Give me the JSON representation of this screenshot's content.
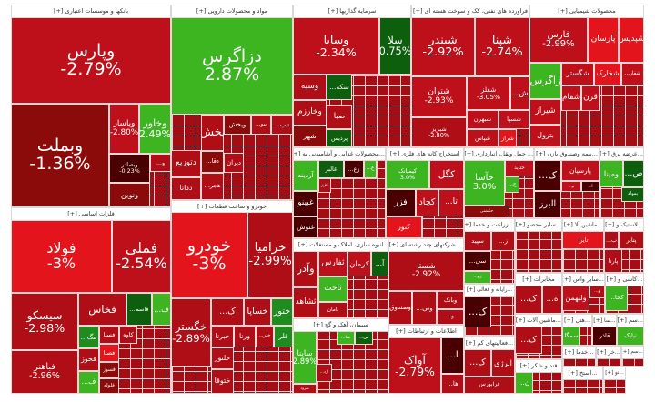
{
  "colors": {
    "strong_red": "#e4141c",
    "red": "#be101a",
    "dark_red": "#8b0a0a",
    "darkest_red": "#4a0000",
    "green": "#3cb521",
    "mid_green": "#1e8c1e",
    "dark_green": "#0d5f0d"
  },
  "sectors": [
    {
      "title": "بانکها و موسسات اعتباری [+]",
      "tiles": [
        {
          "symbol": "وپارس",
          "change": "-2.79%",
          "color": "#be101a"
        },
        {
          "symbol": "وبملت",
          "change": "-1.36%",
          "color": "#8b0a0a"
        },
        {
          "symbol": "وپاسار",
          "change": "-2.80%",
          "color": "#be101a"
        },
        {
          "symbol": "وخاور",
          "change": "2.49%",
          "color": "#3cb521"
        },
        {
          "symbol": "وبصادر",
          "change": "-0.23%",
          "color": "#4a0000"
        },
        {
          "symbol": "...و",
          "change": "",
          "color": "#b00e16"
        },
        {
          "symbol": "ونوین",
          "change": "",
          "color": "#8b0a0a"
        }
      ]
    },
    {
      "title": "مواد و محصولات دارویی [+]",
      "tiles": [
        {
          "symbol": "دزاگرس",
          "change": "2.87%",
          "color": "#3cb521"
        },
        {
          "symbol": "پخش",
          "change": "",
          "color": "#b00e16"
        },
        {
          "symbol": "ویخش",
          "change": "",
          "color": "#8b0a0a"
        },
        {
          "symbol": "...بیو",
          "change": "",
          "color": "#b00e16"
        },
        {
          "symbol": "...تیپ",
          "change": "",
          "color": "#b00e16"
        },
        {
          "symbol": "دتوزیع",
          "change": "",
          "color": "#b00e16"
        },
        {
          "symbol": "...دقا",
          "change": "",
          "color": "#8b0a0a"
        },
        {
          "symbol": "دیران",
          "change": "",
          "color": "#b00e16"
        },
        {
          "symbol": "ددانا",
          "change": "",
          "color": "#b00e16"
        },
        {
          "symbol": "...هجر",
          "change": "",
          "color": "#b00e16"
        }
      ]
    },
    {
      "title": "سرمایه گذاریها [+]",
      "tiles": [
        {
          "symbol": "وسایا",
          "change": "-2.34%",
          "color": "#be101a"
        },
        {
          "symbol": "سلا",
          "change": "0.75%",
          "color": "#0d5f0d"
        },
        {
          "symbol": "وسبه",
          "change": "",
          "color": "#b00e16"
        },
        {
          "symbol": "وخارزم",
          "change": "",
          "color": "#b00e16"
        },
        {
          "symbol": "شهر",
          "change": "",
          "color": "#8b0a0a"
        },
        {
          "symbol": "...سکه",
          "change": "",
          "color": "#0d5f0d"
        },
        {
          "symbol": "صبا",
          "change": "",
          "color": "#b00e16"
        },
        {
          "symbol": "پردیس",
          "change": "",
          "color": "#0d5f0d"
        }
      ]
    },
    {
      "title": "فراورده های نفتی، کک و سوخت هسته ای [+]",
      "tiles": [
        {
          "symbol": "شبندر",
          "change": "-2.92%",
          "color": "#be101a"
        },
        {
          "symbol": "شپنا",
          "change": "-2.74%",
          "color": "#be101a"
        },
        {
          "symbol": "شتران",
          "change": "-2.93%",
          "color": "#be101a"
        },
        {
          "symbol": "شفلز",
          "change": "-3.05%",
          "color": "#be101a"
        },
        {
          "symbol": "...ش",
          "change": "",
          "color": "#be101a"
        },
        {
          "symbol": "شبهرن",
          "change": "",
          "color": "#be101a"
        },
        {
          "symbol": "شسپا",
          "change": "",
          "color": "#be101a"
        },
        {
          "symbol": "شپاس",
          "change": "",
          "color": "#be101a"
        },
        {
          "symbol": "شراز",
          "change": "",
          "color": "#e4141c"
        },
        {
          "symbol": "شبریز",
          "change": "-2.80%",
          "color": "#b00e16"
        }
      ]
    },
    {
      "title": "محصولات شیمیایی [+]",
      "tiles": [
        {
          "symbol": "فارس",
          "change": "-2.99%",
          "color": "#be101a"
        },
        {
          "symbol": "پارسان",
          "change": "",
          "color": "#e4141c"
        },
        {
          "symbol": "شپدیس",
          "change": "",
          "color": "#e4141c"
        },
        {
          "symbol": "زاگرس",
          "change": "",
          "color": "#3cb521"
        },
        {
          "symbol": "شگستر",
          "change": "",
          "color": "#be101a"
        },
        {
          "symbol": "شخارک",
          "change": "",
          "color": "#e4141c"
        },
        {
          "symbol": "...شفار",
          "change": "",
          "color": "#be101a"
        },
        {
          "symbol": "شیراز",
          "change": "",
          "color": "#be101a"
        },
        {
          "symbol": "بترول",
          "change": "",
          "color": "#be101a"
        },
        {
          "symbol": "شفام",
          "change": "",
          "color": "#be101a"
        },
        {
          "symbol": "قرن",
          "change": "",
          "color": "#be101a"
        }
      ]
    },
    {
      "title": "...محصولات غذایی و آشامیدنی به [+]",
      "tiles": [
        {
          "symbol": "آردینه",
          "change": "",
          "color": "#3cb521"
        },
        {
          "symbol": "غالبر",
          "change": "",
          "color": "#0d5f0d"
        },
        {
          "symbol": "...زع",
          "change": "",
          "color": "#4a0000"
        },
        {
          "symbol": "...غ",
          "change": "",
          "color": "#3cb521"
        },
        {
          "symbol": "غبینو",
          "change": "",
          "color": "#4a0000"
        },
        {
          "symbol": "غنوش",
          "change": "",
          "color": "#4a0000"
        },
        {
          "symbol": "غزر",
          "change": "",
          "color": "#b00e16"
        }
      ]
    },
    {
      "title": "استخراج کانه های فلزی [+]",
      "tiles": [
        {
          "symbol": "کیمیاتک",
          "change": "3.0%",
          "color": "#3cb521"
        },
        {
          "symbol": "کگل",
          "change": "",
          "color": "#be101a"
        },
        {
          "symbol": "فزر",
          "change": "",
          "color": "#4a0000"
        },
        {
          "symbol": "کچاد",
          "change": "",
          "color": "#be101a"
        },
        {
          "symbol": "...تا",
          "change": "",
          "color": "#be101a"
        },
        {
          "symbol": "کنور",
          "change": "",
          "color": "#e4141c"
        }
      ]
    },
    {
      "title": "... حمل ونقل، انبارداری [+]",
      "tiles": [
        {
          "symbol": "حآسا",
          "change": "3.0%",
          "color": "#3cb521"
        },
        {
          "symbol": "حتاید",
          "change": "",
          "color": "#be101a"
        },
        {
          "symbol": "...ح",
          "change": "",
          "color": "#3cb521"
        },
        {
          "symbol": "حکشتی",
          "change": "",
          "color": "#8b0a0a"
        }
      ]
    },
    {
      "title": "...بیمه وصندوق بازن [+]",
      "tiles": [
        {
          "symbol": "...ک",
          "change": "",
          "color": "#4a0000"
        },
        {
          "symbol": "پارسیان",
          "change": "",
          "color": "#be101a"
        },
        {
          "symbol": "...م",
          "change": "",
          "color": "#be101a"
        },
        {
          "symbol": "...آ",
          "change": "",
          "color": "#4a0000"
        },
        {
          "symbol": "البرز",
          "change": "",
          "color": "#4a0000"
        }
      ]
    },
    {
      "title": "...عرضه برق [+]",
      "tiles": [
        {
          "symbol": "ومپنا",
          "change": "",
          "color": "#3cb521"
        },
        {
          "symbol": "...ص",
          "change": "",
          "color": "#0d5f0d"
        },
        {
          "symbol": "بمولد",
          "change": "",
          "color": "#0d5f0d"
        }
      ]
    },
    {
      "title": "فلزات اساسی [+]",
      "tiles": [
        {
          "symbol": "فولاد",
          "change": "-3%",
          "color": "#e4141c"
        },
        {
          "symbol": "فملی",
          "change": "-2.54%",
          "color": "#be101a"
        },
        {
          "symbol": "سیسکو",
          "change": "-2.98%",
          "color": "#b00e16"
        },
        {
          "symbol": "فباهنر",
          "change": "-2.96%",
          "color": "#b00e16"
        },
        {
          "symbol": "فخاس",
          "change": "",
          "color": "#b00e16"
        },
        {
          "symbol": "...فاسم",
          "change": "",
          "color": "#0d5f0d"
        },
        {
          "symbol": "...ف",
          "change": "",
          "color": "#3cb521"
        },
        {
          "symbol": "...مگ",
          "change": "",
          "color": "#1e8c1e"
        },
        {
          "symbol": "فسپا",
          "change": "",
          "color": "#b00e16"
        },
        {
          "symbol": "کاوه",
          "change": "",
          "color": "#b00e16"
        },
        {
          "symbol": "فصبا",
          "change": "",
          "color": "#e4141c"
        },
        {
          "symbol": "فخوز",
          "change": "",
          "color": "#b00e16"
        },
        {
          "symbol": "فسوز",
          "change": "",
          "color": "#8b0a0a"
        },
        {
          "symbol": "فلوله",
          "change": "",
          "color": "#8b0a0a"
        },
        {
          "symbol": "...ف",
          "change": "",
          "color": "#3cb521"
        }
      ]
    },
    {
      "title": "خودرو و ساخت قطعات [+]",
      "tiles": [
        {
          "symbol": "خودرو",
          "change": "-3%",
          "color": "#e4141c"
        },
        {
          "symbol": "خزامیا",
          "change": "-2.99%",
          "color": "#b00e16"
        },
        {
          "symbol": "خگستر",
          "change": "-2.89%",
          "color": "#b00e16"
        },
        {
          "symbol": "...ک",
          "change": "",
          "color": "#b00e16"
        },
        {
          "symbol": "خساپا",
          "change": "",
          "color": "#b00e16"
        },
        {
          "symbol": "ختور",
          "change": "",
          "color": "#1e8c1e"
        },
        {
          "symbol": "خبرنا",
          "change": "",
          "color": "#b00e16"
        },
        {
          "symbol": "ورنا",
          "change": "",
          "color": "#b00e16"
        },
        {
          "symbol": "...ختر",
          "change": "",
          "color": "#b00e16"
        },
        {
          "symbol": "قلر",
          "change": "",
          "color": "#1e8c1e"
        },
        {
          "symbol": "خلنور",
          "change": "",
          "color": "#b00e16"
        },
        {
          "symbol": "ختوقا",
          "change": "",
          "color": "#b00e16"
        }
      ]
    },
    {
      "title": "انبوه سازی، املاک و مستغلات [+]",
      "tiles": [
        {
          "symbol": "وآذر",
          "change": "",
          "color": "#b00e16"
        },
        {
          "symbol": "ثفارس",
          "change": "",
          "color": "#be101a"
        },
        {
          "symbol": "کرمان",
          "change": "",
          "color": "#be101a"
        },
        {
          "symbol": "...آ",
          "change": "",
          "color": "#0d5f0d"
        },
        {
          "symbol": "ثاخت",
          "change": "",
          "color": "#3cb521"
        },
        {
          "symbol": "ثشاهد",
          "change": "",
          "color": "#b00e16"
        },
        {
          "symbol": "ثامان",
          "change": "",
          "color": "#b00e16"
        }
      ]
    },
    {
      "title": "... شرکتهای چند رشته ای [+]",
      "tiles": [
        {
          "symbol": "شستا",
          "change": "-2.92%",
          "color": "#b00e16"
        },
        {
          "symbol": "وصندوق",
          "change": "",
          "color": "#b00e16"
        },
        {
          "symbol": "...ونی",
          "change": "",
          "color": "#b00e16"
        },
        {
          "symbol": "وبانک",
          "change": "",
          "color": "#b00e16"
        },
        {
          "symbol": "...و",
          "change": "",
          "color": "#b00e16"
        }
      ]
    },
    {
      "title": "سیمان، آهک و گچ [+]",
      "tiles": [
        {
          "symbol": "ساینا",
          "change": "2.89%",
          "color": "#3cb521"
        },
        {
          "symbol": "...سا",
          "change": "",
          "color": "#3cb521"
        },
        {
          "symbol": "...س",
          "change": "",
          "color": "#0d5f0d"
        },
        {
          "symbol": "...ارد",
          "change": "",
          "color": "#b00e16"
        },
        {
          "symbol": "سرود",
          "change": "",
          "color": "#b00e16"
        }
      ]
    },
    {
      "title": "اطلاعات و ارتباطات [+]",
      "tiles": [
        {
          "symbol": "آواک",
          "change": "-2.79%",
          "color": "#be101a"
        },
        {
          "symbol": "...ا",
          "change": "",
          "color": "#4a0000"
        },
        {
          "symbol": "...ها",
          "change": "",
          "color": "#b00e16"
        }
      ]
    },
    {
      "title": "...زراعت و خدما [+]",
      "tiles": [
        {
          "symbol": "سپید",
          "change": "",
          "color": "#b00e16"
        },
        {
          "symbol": "...ز",
          "change": "",
          "color": "#b00e16"
        },
        {
          "symbol": "...سی",
          "change": "",
          "color": "#4a0000"
        },
        {
          "symbol": "...زم",
          "change": "",
          "color": "#3cb521"
        }
      ]
    },
    {
      "title": "...سایر محصو [+]",
      "tiles": []
    },
    {
      "title": "...ماشین آلا [+]",
      "tiles": [
        {
          "symbol": "تایرا",
          "change": "",
          "color": "#e4141c"
        }
      ]
    },
    {
      "title": "...لاستیک و [+]",
      "tiles": [
        {
          "symbol": "پتایر",
          "change": "",
          "color": "#b00e16"
        },
        {
          "symbol": "...ب",
          "change": "",
          "color": "#b00e16"
        },
        {
          "symbol": "پارتا",
          "change": "",
          "color": "#b00e16"
        }
      ]
    },
    {
      "title": "...رایانه و فعالی [+]",
      "tiles": [
        {
          "symbol": "...ک",
          "change": "",
          "color": "#4a0000"
        }
      ]
    },
    {
      "title": "مخابرات [+]",
      "tiles": [
        {
          "symbol": "...ک",
          "change": "",
          "color": "#b00e16"
        },
        {
          "symbol": "...ه",
          "change": "",
          "color": "#b00e16"
        }
      ]
    },
    {
      "title": "...سایر واس [+]",
      "tiles": [
        {
          "symbol": "ولبهمن",
          "change": "",
          "color": "#be101a"
        },
        {
          "symbol": "...و",
          "change": "",
          "color": "#b00e16"
        }
      ]
    },
    {
      "title": "...کاشی و [+]",
      "tiles": [
        {
          "symbol": "...کحا",
          "change": "",
          "color": "#3cb521"
        }
      ]
    },
    {
      "title": "...فعالیتهای کم [+]",
      "tiles": [
        {
          "symbol": "...ک",
          "change": "",
          "color": "#b00e16"
        },
        {
          "symbol": "انرژی",
          "change": "",
          "color": "#b00e16"
        },
        {
          "symbol": "فرابورس",
          "change": "",
          "color": "#b00e16"
        }
      ]
    },
    {
      "title": "...ماشین آلات [+]",
      "tiles": [
        {
          "symbol": "...ک",
          "change": "",
          "color": "#b00e16"
        }
      ]
    },
    {
      "title": "...هتل [+]",
      "tiles": [
        {
          "symbol": "سمگا",
          "change": "",
          "color": "#3cb521"
        }
      ]
    },
    {
      "title": "...سا [+]",
      "tiles": [
        {
          "symbol": "قاذر",
          "change": "",
          "color": "#4a0000"
        }
      ]
    },
    {
      "title": "...سم [+]",
      "tiles": [
        {
          "symbol": "نیایک",
          "change": "",
          "color": "#3cb521"
        }
      ]
    },
    {
      "title": "قند و شکر [+]",
      "tiles": [
        {
          "symbol": "...ن",
          "change": "",
          "color": "#3cb521"
        }
      ]
    },
    {
      "title": "...خدما [+]",
      "tiles": []
    },
    {
      "title": "...خر [+]",
      "tiles": []
    },
    {
      "title": "...سم [+]",
      "tiles": []
    },
    {
      "title": "...استخ [+]",
      "tiles": []
    },
    {
      "title": "...نو [+]",
      "tiles": []
    }
  ]
}
